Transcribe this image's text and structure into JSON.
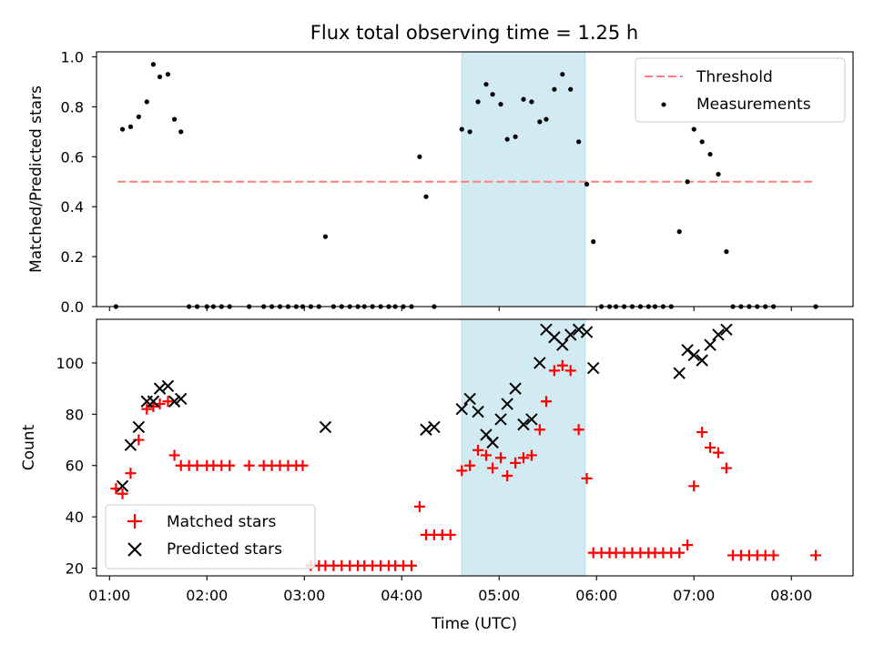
{
  "chart_data": [
    {
      "type": "scatter",
      "title": "Flux total observing time = 1.25 h",
      "xlabel": "",
      "ylabel": "Matched/Predicted stars",
      "ylim": [
        0,
        1.02
      ],
      "xlim": [
        "00:52",
        "08:38"
      ],
      "yticks": [
        "0.0",
        "0.2",
        "0.4",
        "0.6",
        "0.8",
        "1.0"
      ],
      "highlight": {
        "start": "04:37",
        "end": "05:53"
      },
      "threshold": {
        "name": "Threshold",
        "value": 0.5,
        "x": [
          "01:05",
          "08:15"
        ],
        "color": "#ff7f7f"
      },
      "legend": {
        "position": "top-right",
        "entries": [
          "Threshold",
          "Measurements"
        ]
      },
      "series": [
        {
          "name": "Measurements",
          "color": "#000000",
          "x": [
            "01:04",
            "01:08",
            "01:13",
            "01:18",
            "01:23",
            "01:27",
            "01:31",
            "01:36",
            "01:40",
            "01:44",
            "01:49",
            "01:54",
            "02:00",
            "02:04",
            "02:09",
            "02:14",
            "02:26",
            "02:35",
            "02:40",
            "02:45",
            "02:50",
            "02:55",
            "02:59",
            "03:04",
            "03:09",
            "03:13",
            "03:18",
            "03:23",
            "03:28",
            "03:33",
            "03:37",
            "03:42",
            "03:47",
            "03:52",
            "03:56",
            "04:01",
            "04:06",
            "04:11",
            "04:15",
            "04:20",
            "04:37",
            "04:42",
            "04:47",
            "04:52",
            "04:56",
            "05:01",
            "05:05",
            "05:10",
            "05:15",
            "05:20",
            "05:25",
            "05:29",
            "05:34",
            "05:39",
            "05:44",
            "05:49",
            "05:54",
            "05:58",
            "06:03",
            "06:08",
            "06:12",
            "06:17",
            "06:22",
            "06:27",
            "06:32",
            "06:36",
            "06:41",
            "06:46",
            "06:51",
            "06:56",
            "07:00",
            "07:05",
            "07:10",
            "07:15",
            "07:20",
            "07:24",
            "07:29",
            "07:34",
            "07:39",
            "07:44",
            "07:49",
            "08:15"
          ],
          "y": [
            0,
            0.71,
            0.72,
            0.76,
            0.82,
            0.97,
            0.92,
            0.93,
            0.75,
            0.7,
            0,
            0,
            0,
            0,
            0,
            0,
            0,
            0,
            0,
            0,
            0,
            0,
            0,
            0,
            0,
            0.28,
            0,
            0,
            0,
            0,
            0,
            0,
            0,
            0,
            0,
            0,
            0,
            0.6,
            0.44,
            0,
            0.71,
            0.7,
            0.82,
            0.89,
            0.85,
            0.81,
            0.67,
            0.68,
            0.83,
            0.82,
            0.74,
            0.75,
            0.87,
            0.93,
            0.87,
            0.66,
            0.49,
            0.26,
            0,
            0,
            0,
            0,
            0,
            0,
            0,
            0,
            0,
            0,
            0.3,
            0.5,
            0.71,
            0.66,
            0.61,
            0.53,
            0.22,
            0,
            0,
            0,
            0,
            0,
            0,
            0
          ]
        }
      ]
    },
    {
      "type": "scatter",
      "title": "",
      "xlabel": "Time (UTC)",
      "ylabel": "Count",
      "ylim": [
        17,
        117
      ],
      "xlim": [
        "00:52",
        "08:38"
      ],
      "yticks": [
        "20",
        "40",
        "60",
        "80",
        "100"
      ],
      "xticks": [
        "01:00",
        "02:00",
        "03:00",
        "04:00",
        "05:00",
        "06:00",
        "07:00",
        "08:00"
      ],
      "highlight": {
        "start": "04:37",
        "end": "05:53"
      },
      "legend": {
        "position": "lower-left",
        "entries": [
          "Matched stars",
          "Predicted stars"
        ]
      },
      "series": [
        {
          "name": "Matched stars",
          "marker": "plus",
          "color": "#ff0000",
          "x": [
            "01:04",
            "01:08",
            "01:13",
            "01:18",
            "01:23",
            "01:27",
            "01:31",
            "01:36",
            "01:40",
            "01:44",
            "01:49",
            "01:54",
            "02:00",
            "02:04",
            "02:09",
            "02:14",
            "02:26",
            "02:35",
            "02:40",
            "02:45",
            "02:50",
            "02:55",
            "02:59",
            "03:04",
            "03:09",
            "03:13",
            "03:18",
            "03:23",
            "03:28",
            "03:33",
            "03:37",
            "03:42",
            "03:47",
            "03:52",
            "03:56",
            "04:01",
            "04:06",
            "04:11",
            "04:15",
            "04:20",
            "04:25",
            "04:30",
            "04:37",
            "04:42",
            "04:47",
            "04:52",
            "04:56",
            "05:01",
            "05:05",
            "05:10",
            "05:15",
            "05:20",
            "05:25",
            "05:29",
            "05:34",
            "05:39",
            "05:44",
            "05:49",
            "05:54",
            "05:58",
            "06:03",
            "06:08",
            "06:12",
            "06:17",
            "06:22",
            "06:27",
            "06:32",
            "06:36",
            "06:41",
            "06:46",
            "06:51",
            "06:56",
            "07:00",
            "07:05",
            "07:10",
            "07:15",
            "07:20",
            "07:24",
            "07:29",
            "07:34",
            "07:39",
            "07:44",
            "07:49",
            "08:15"
          ],
          "y": [
            51,
            49,
            57,
            70,
            82,
            83,
            84,
            85,
            64,
            60,
            60,
            60,
            60,
            60,
            60,
            60,
            60,
            60,
            60,
            60,
            60,
            60,
            60,
            21,
            21,
            21,
            21,
            21,
            21,
            21,
            21,
            21,
            21,
            21,
            21,
            21,
            21,
            44,
            33,
            33,
            33,
            33,
            58,
            60,
            66,
            64,
            59,
            63,
            56,
            61,
            63,
            64,
            74,
            85,
            97,
            99,
            97,
            74,
            55,
            26,
            26,
            26,
            26,
            26,
            26,
            26,
            26,
            26,
            26,
            26,
            26,
            29,
            52,
            73,
            67,
            65,
            59,
            25,
            25,
            25,
            25,
            25,
            25,
            25
          ]
        },
        {
          "name": "Predicted stars",
          "marker": "x",
          "color": "#000000",
          "x": [
            "01:08",
            "01:13",
            "01:18",
            "01:23",
            "01:27",
            "01:31",
            "01:36",
            "01:40",
            "01:44",
            "03:13",
            "04:15",
            "04:20",
            "04:37",
            "04:42",
            "04:47",
            "04:52",
            "04:56",
            "05:01",
            "05:05",
            "05:10",
            "05:15",
            "05:20",
            "05:25",
            "05:29",
            "05:34",
            "05:39",
            "05:44",
            "05:49",
            "05:54",
            "05:58",
            "06:51",
            "06:56",
            "07:00",
            "07:05",
            "07:10",
            "07:15",
            "07:20"
          ],
          "y": [
            52,
            68,
            75,
            85,
            85,
            90,
            91,
            85,
            86,
            75,
            74,
            75,
            82,
            86,
            81,
            72,
            69,
            78,
            84,
            90,
            76,
            78,
            100,
            113,
            110,
            107,
            111,
            113,
            112,
            98,
            96,
            105,
            103,
            101,
            107,
            111,
            113
          ]
        }
      ]
    }
  ]
}
